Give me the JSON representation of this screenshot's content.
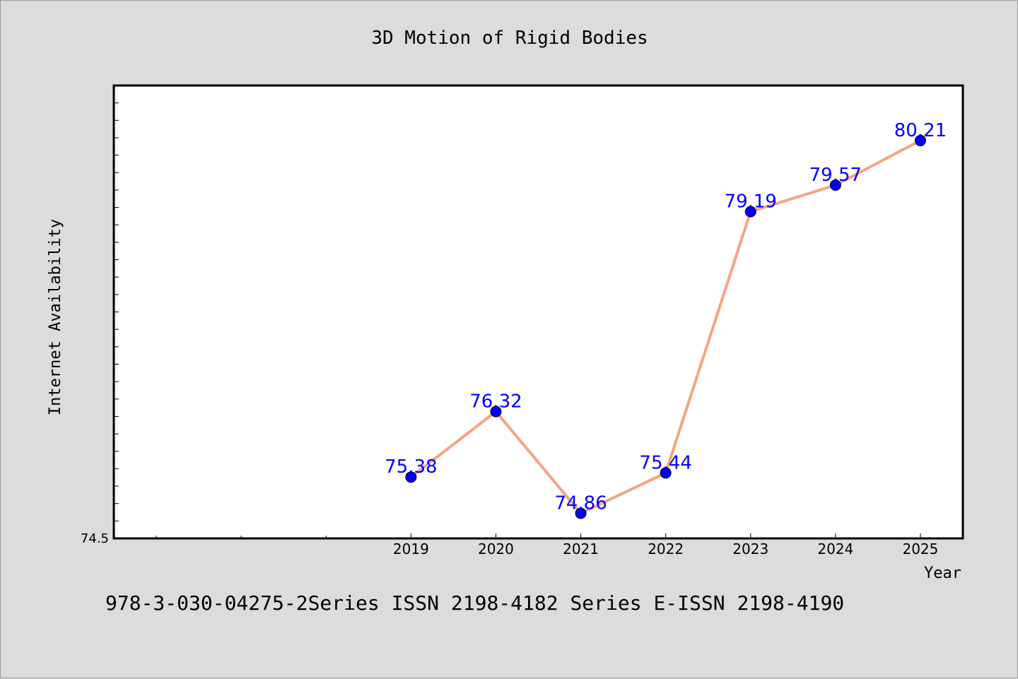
{
  "chart_data": {
    "type": "line",
    "title": "3D Motion of Rigid Bodies",
    "xlabel": "Year",
    "ylabel": "Internet Availability",
    "categories": [
      "2019",
      "2020",
      "2021",
      "2022",
      "2023",
      "2024",
      "2025"
    ],
    "series": [
      {
        "values": [
          75.38,
          76.32,
          74.86,
          75.44,
          79.19,
          79.57,
          80.21
        ]
      }
    ],
    "data_labels": [
      "75.38",
      "76.32",
      "74.86",
      "75.44",
      "79.19",
      "79.57",
      "80.21"
    ],
    "x_range": [
      2015.5,
      2025.5
    ],
    "ylim": [
      74.5,
      81.0
    ],
    "y_tick_label": "74.5",
    "grid": false,
    "line_color": "#f4a582",
    "marker_color": "#0000ff",
    "label_color": "#0000ff"
  },
  "footer": {
    "text": "978-3-030-04275-2Series ISSN 2198-4182 Series E-ISSN 2198-4190"
  }
}
